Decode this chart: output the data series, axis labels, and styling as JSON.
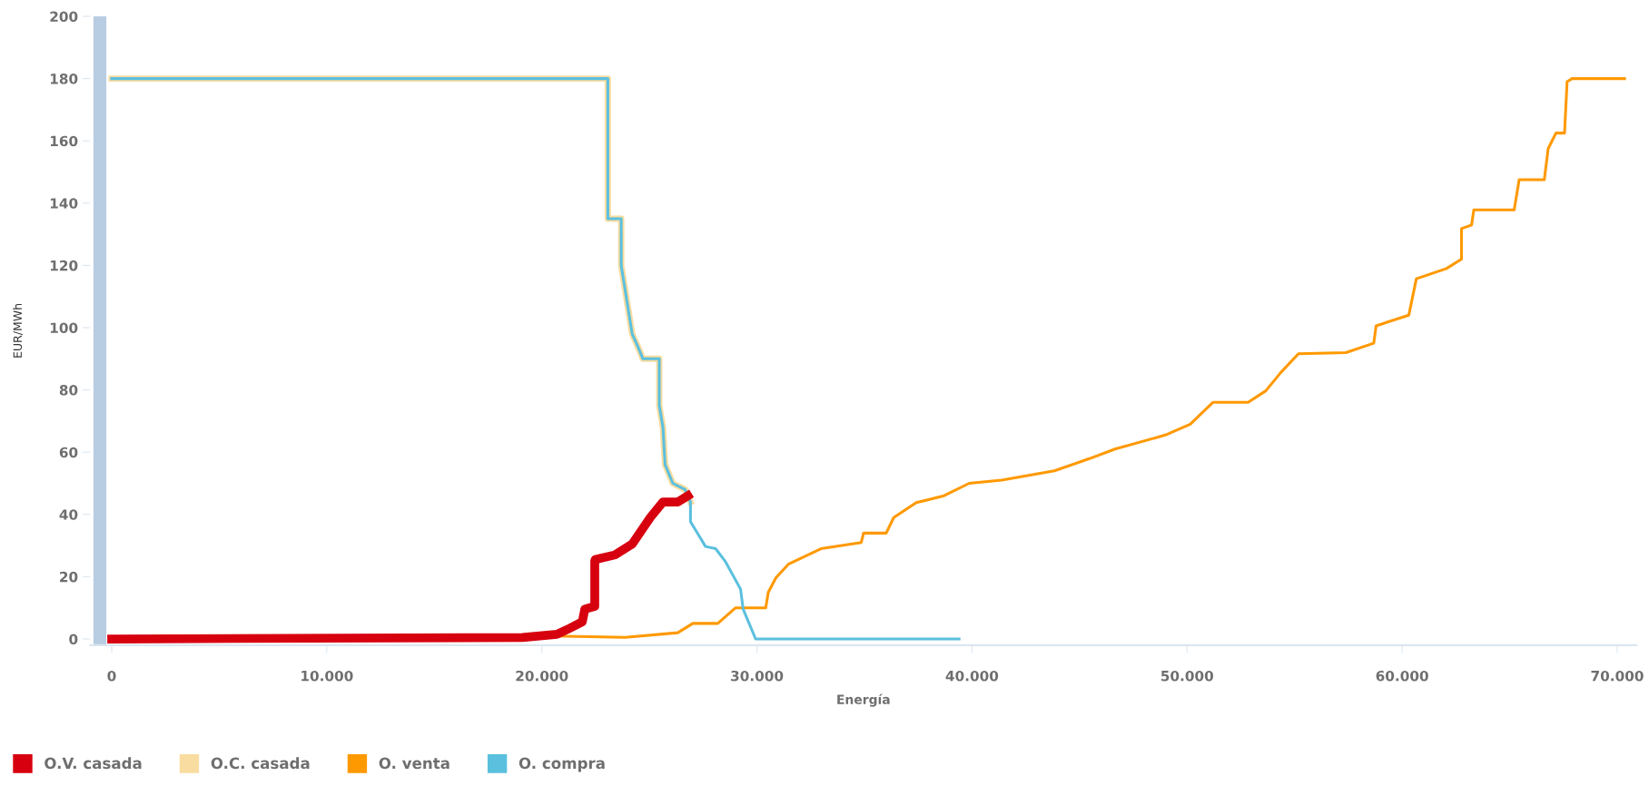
{
  "chart_data": {
    "type": "line",
    "xlabel": "Energía",
    "ylabel": "EUR/MWh",
    "xlim": [
      -1000,
      70900
    ],
    "ylim": [
      -2,
      200
    ],
    "xticks": [
      {
        "value": 0,
        "label": "0"
      },
      {
        "value": 10000,
        "label": "10.000"
      },
      {
        "value": 20000,
        "label": "20.000"
      },
      {
        "value": 30000,
        "label": "30.000"
      },
      {
        "value": 40000,
        "label": "40.000"
      },
      {
        "value": 50000,
        "label": "50.000"
      },
      {
        "value": 60000,
        "label": "60.000"
      },
      {
        "value": 70000,
        "label": "70.000"
      }
    ],
    "yticks": [
      0,
      20,
      40,
      60,
      80,
      100,
      120,
      140,
      160,
      180,
      200
    ],
    "grid": false,
    "legend": "bottom",
    "marker": "none",
    "line_style": "solid",
    "bands": [
      {
        "axis": "x",
        "from": -850,
        "to": -250,
        "color": "#b9cde2"
      }
    ],
    "series": [
      {
        "name": "O.V. casada",
        "color": "#d7000f",
        "x": [
          0,
          19100,
          20700,
          21170,
          21880,
          22000,
          22460,
          22460,
          22480,
          23400,
          24200,
          25040,
          25630,
          26320,
          26790
        ],
        "values": [
          0,
          0.5,
          1.5,
          3,
          5.5,
          9.6,
          10.5,
          25,
          25.5,
          27,
          30.5,
          39,
          44,
          44,
          46
        ]
      },
      {
        "name": "O.C. casada",
        "color": "#f9dca0",
        "x": [
          0,
          23070,
          23070,
          23690,
          23690,
          24200,
          24460,
          24700,
          25460,
          25460,
          25630,
          25730,
          26090,
          26660,
          26910
        ],
        "values": [
          180,
          180,
          135,
          135,
          120,
          98,
          94,
          90,
          90,
          75,
          68,
          56,
          50,
          48,
          44
        ]
      },
      {
        "name": "O. venta",
        "color": "#ff9900",
        "x": [
          0,
          20000,
          23870,
          26320,
          27020,
          28180,
          29010,
          30410,
          30530,
          30880,
          31460,
          32980,
          34850,
          34960,
          36010,
          36360,
          37410,
          38700,
          39870,
          41380,
          43830,
          45490,
          46650,
          48990,
          50150,
          51200,
          52840,
          53660,
          54360,
          55180,
          57390,
          58680,
          58790,
          60310,
          60660,
          62060,
          62760,
          62760,
          63230,
          63330,
          65210,
          65440,
          66610,
          66790,
          67150,
          67550,
          67670,
          67900,
          70340
        ],
        "values": [
          0,
          1,
          0.5,
          2,
          5,
          5,
          10,
          10,
          15,
          19.6,
          24,
          29,
          31,
          34,
          34,
          39,
          43.8,
          46,
          50,
          51,
          54,
          58,
          61,
          65.5,
          69,
          76,
          76,
          79.7,
          85.6,
          91.6,
          92,
          95,
          100.6,
          104,
          115.7,
          119,
          122,
          131.8,
          133,
          137.8,
          137.8,
          147.5,
          147.5,
          157.5,
          162.5,
          162.5,
          179,
          180,
          180
        ]
      },
      {
        "name": "O. compra",
        "color": "#5bc0de",
        "x": [
          0,
          23070,
          23070,
          23690,
          23690,
          24200,
          24460,
          24700,
          25460,
          25460,
          25630,
          25730,
          26090,
          26660,
          26910,
          26910,
          27610,
          28080,
          28540,
          29240,
          29360,
          29940,
          39400
        ],
        "values": [
          180,
          180,
          135,
          135,
          120,
          98,
          94,
          90,
          90,
          75,
          68,
          56,
          50,
          48,
          44,
          37.7,
          29.7,
          29,
          24.8,
          16,
          9.6,
          0,
          0
        ]
      }
    ]
  }
}
